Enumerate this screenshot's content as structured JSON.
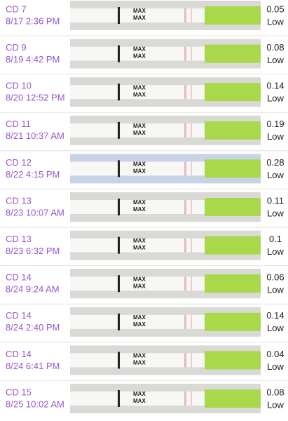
{
  "strip_label": "MAX",
  "rows": [
    {
      "cd": "CD 7",
      "datetime": "8/17 2:36 PM",
      "value": 0.05,
      "level": "Low"
    },
    {
      "cd": "CD 9",
      "datetime": "8/19 4:42 PM",
      "value": 0.08,
      "level": "Low"
    },
    {
      "cd": "CD 10",
      "datetime": "8/20 12:52 PM",
      "value": 0.14,
      "level": "Low"
    },
    {
      "cd": "CD 11",
      "datetime": "8/21 10:37 AM",
      "value": 0.19,
      "level": "Low"
    },
    {
      "cd": "CD 12",
      "datetime": "8/22 4:15 PM",
      "value": 0.28,
      "level": "Low"
    },
    {
      "cd": "CD 13",
      "datetime": "8/23 10:07 AM",
      "value": 0.11,
      "level": "Low"
    },
    {
      "cd": "CD 13",
      "datetime": "8/23 6:32 PM",
      "value": 0.1,
      "level": "Low"
    },
    {
      "cd": "CD 14",
      "datetime": "8/24 9:24 AM",
      "value": 0.06,
      "level": "Low"
    },
    {
      "cd": "CD 14",
      "datetime": "8/24 2:40 PM",
      "value": 0.14,
      "level": "Low"
    },
    {
      "cd": "CD 14",
      "datetime": "8/24 6:41 PM",
      "value": 0.04,
      "level": "Low"
    },
    {
      "cd": "CD 15",
      "datetime": "8/25 10:02 AM",
      "value": 0.08,
      "level": "Low"
    }
  ]
}
